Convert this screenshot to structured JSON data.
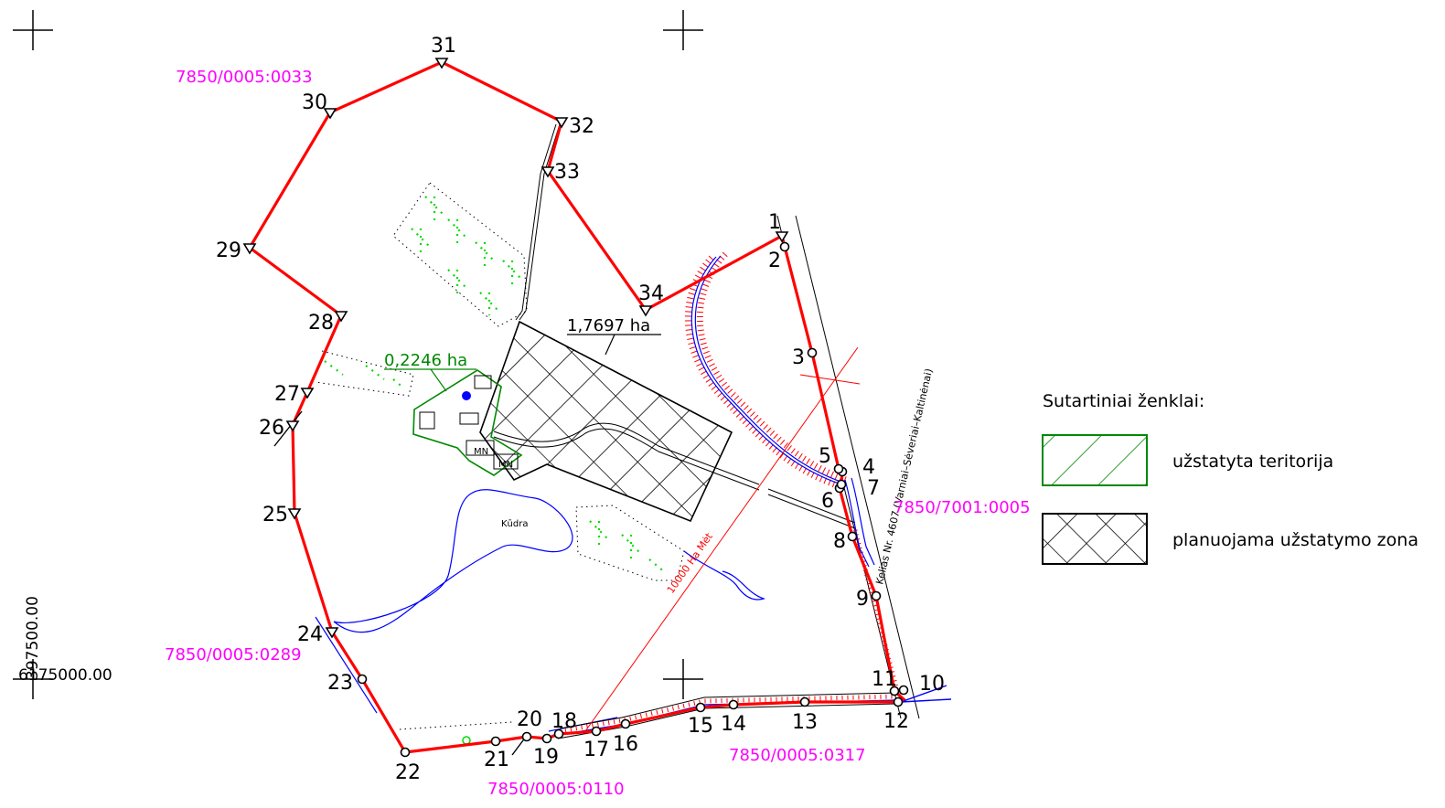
{
  "boundary_points": [
    {
      "id": "1",
      "label": "1",
      "marker": "triangle"
    },
    {
      "id": "2",
      "label": "2",
      "marker": "circle"
    },
    {
      "id": "3",
      "label": "3",
      "marker": "circle"
    },
    {
      "id": "4",
      "label": "4",
      "marker": "circle"
    },
    {
      "id": "5",
      "label": "5",
      "marker": "circle"
    },
    {
      "id": "6",
      "label": "6",
      "marker": "circle"
    },
    {
      "id": "7",
      "label": "7",
      "marker": "circle"
    },
    {
      "id": "8",
      "label": "8",
      "marker": "circle"
    },
    {
      "id": "9",
      "label": "9",
      "marker": "circle"
    },
    {
      "id": "10",
      "label": "10",
      "marker": "circle"
    },
    {
      "id": "11",
      "label": "11",
      "marker": "circle"
    },
    {
      "id": "12",
      "label": "12",
      "marker": "circle"
    },
    {
      "id": "13",
      "label": "13",
      "marker": "circle"
    },
    {
      "id": "14",
      "label": "14",
      "marker": "circle"
    },
    {
      "id": "15",
      "label": "15",
      "marker": "circle"
    },
    {
      "id": "16",
      "label": "16",
      "marker": "circle"
    },
    {
      "id": "17",
      "label": "17",
      "marker": "circle"
    },
    {
      "id": "18",
      "label": "18",
      "marker": "circle"
    },
    {
      "id": "19",
      "label": "19",
      "marker": "circle"
    },
    {
      "id": "20",
      "label": "20",
      "marker": "circle"
    },
    {
      "id": "21",
      "label": "21",
      "marker": "circle"
    },
    {
      "id": "22",
      "label": "22",
      "marker": "circle"
    },
    {
      "id": "23",
      "label": "23",
      "marker": "circle"
    },
    {
      "id": "24",
      "label": "24",
      "marker": "triangle"
    },
    {
      "id": "25",
      "label": "25",
      "marker": "triangle"
    },
    {
      "id": "26",
      "label": "26",
      "marker": "triangle"
    },
    {
      "id": "27",
      "label": "27",
      "marker": "triangle"
    },
    {
      "id": "28",
      "label": "28",
      "marker": "triangle"
    },
    {
      "id": "29",
      "label": "29",
      "marker": "triangle"
    },
    {
      "id": "30",
      "label": "30",
      "marker": "triangle"
    },
    {
      "id": "31",
      "label": "31",
      "marker": "triangle"
    },
    {
      "id": "32",
      "label": "32",
      "marker": "triangle"
    },
    {
      "id": "33",
      "label": "33",
      "marker": "triangle"
    },
    {
      "id": "34",
      "label": "34",
      "marker": "triangle"
    }
  ],
  "parcels": {
    "p0033": "7850/0005:0033",
    "p0289": "7850/0005:0289",
    "p0110": "7850/0005:0110",
    "p0317": "7850/0005:0317",
    "p7001": "7850/7001:0005"
  },
  "areas": {
    "planned": "1,7697  ha",
    "built": "0,2246  ha"
  },
  "labels": {
    "pond": "Kūdra",
    "road": "Kelias  Nr.  4607  (Varniai–Sėveriai–Kaltinėnai)",
    "distance": "10000 Ha Mėt"
  },
  "coordinates": {
    "x": "6175000.00",
    "y": "397500.00"
  },
  "legend": {
    "title": "Sutartiniai  ženklai:",
    "items": [
      {
        "label": "užstatyta  teritorija",
        "pattern": "hatch-green"
      },
      {
        "label": "planuojama  užstatymo  zona",
        "pattern": "crosshatch-black"
      }
    ]
  },
  "colors": {
    "boundary": "#ff0000",
    "parcel_text": "#ff00ff",
    "built_area": "#008800",
    "water": "#0000ff",
    "vegetation": "#00dd00",
    "planned_zone": "#000000"
  }
}
